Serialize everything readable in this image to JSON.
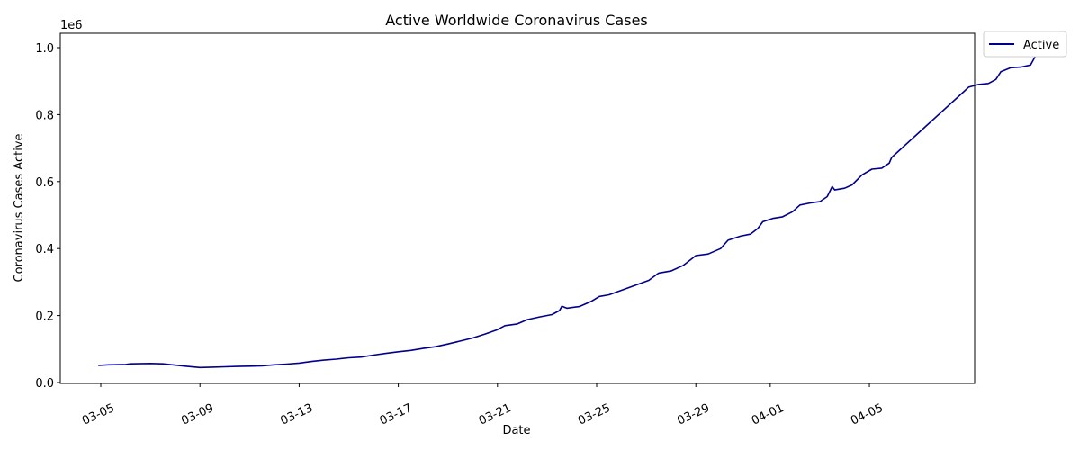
{
  "chart_data": {
    "type": "line",
    "title": "Active Worldwide Coronavirus Cases",
    "xlabel": "Date",
    "ylabel": "Coronavirus Cases Active",
    "y_offset_label": "1e6",
    "ylim": [
      0,
      1.0
    ],
    "y_ticks": [
      "0.0",
      "0.2",
      "0.4",
      "0.6",
      "0.8",
      "1.0"
    ],
    "x_ticks": [
      {
        "label": "03-05",
        "day": 0
      },
      {
        "label": "03-09",
        "day": 4
      },
      {
        "label": "03-13",
        "day": 8
      },
      {
        "label": "03-17",
        "day": 12
      },
      {
        "label": "03-21",
        "day": 16
      },
      {
        "label": "03-25",
        "day": 20
      },
      {
        "label": "03-29",
        "day": 24
      },
      {
        "label": "04-01",
        "day": 27
      },
      {
        "label": "04-05",
        "day": 31
      }
    ],
    "xlim_days": [
      -1.7,
      35.4
    ],
    "legend": {
      "position": "outside-top-right",
      "entries": [
        "Active"
      ]
    },
    "series": [
      {
        "name": "Active",
        "color": "#00008b",
        "points": [
          [
            -0.1,
            0.051
          ],
          [
            0.3,
            0.053
          ],
          [
            1.0,
            0.054
          ],
          [
            1.2,
            0.056
          ],
          [
            2.0,
            0.057
          ],
          [
            2.5,
            0.056
          ],
          [
            3.5,
            0.048
          ],
          [
            4.0,
            0.045
          ],
          [
            4.5,
            0.046
          ],
          [
            5.0,
            0.047
          ],
          [
            5.5,
            0.048
          ],
          [
            6.0,
            0.049
          ],
          [
            6.5,
            0.05
          ],
          [
            7.0,
            0.053
          ],
          [
            7.5,
            0.055
          ],
          [
            8.0,
            0.058
          ],
          [
            8.5,
            0.063
          ],
          [
            9.0,
            0.067
          ],
          [
            9.5,
            0.07
          ],
          [
            10.0,
            0.074
          ],
          [
            10.5,
            0.076
          ],
          [
            11.0,
            0.082
          ],
          [
            11.5,
            0.087
          ],
          [
            12.0,
            0.092
          ],
          [
            12.5,
            0.096
          ],
          [
            13.0,
            0.102
          ],
          [
            13.5,
            0.107
          ],
          [
            14.0,
            0.115
          ],
          [
            14.5,
            0.124
          ],
          [
            15.0,
            0.133
          ],
          [
            15.5,
            0.145
          ],
          [
            16.0,
            0.158
          ],
          [
            16.3,
            0.17
          ],
          [
            16.8,
            0.175
          ],
          [
            17.2,
            0.188
          ],
          [
            17.7,
            0.196
          ],
          [
            18.2,
            0.203
          ],
          [
            18.5,
            0.215
          ],
          [
            18.6,
            0.228
          ],
          [
            18.8,
            0.222
          ],
          [
            19.3,
            0.227
          ],
          [
            19.8,
            0.243
          ],
          [
            20.1,
            0.257
          ],
          [
            20.5,
            0.262
          ],
          [
            22.1,
            0.305
          ],
          [
            22.5,
            0.327
          ],
          [
            23.0,
            0.333
          ],
          [
            23.5,
            0.35
          ],
          [
            24.0,
            0.379
          ],
          [
            24.5,
            0.384
          ],
          [
            25.0,
            0.4
          ],
          [
            25.3,
            0.425
          ],
          [
            25.8,
            0.437
          ],
          [
            26.2,
            0.443
          ],
          [
            26.5,
            0.46
          ],
          [
            26.7,
            0.48
          ],
          [
            27.1,
            0.49
          ],
          [
            27.5,
            0.495
          ],
          [
            27.9,
            0.51
          ],
          [
            28.2,
            0.53
          ],
          [
            28.6,
            0.536
          ],
          [
            29.0,
            0.54
          ],
          [
            29.3,
            0.555
          ],
          [
            29.5,
            0.585
          ],
          [
            29.6,
            0.575
          ],
          [
            30.0,
            0.58
          ],
          [
            30.3,
            0.59
          ],
          [
            30.7,
            0.62
          ],
          [
            31.1,
            0.637
          ],
          [
            31.5,
            0.64
          ],
          [
            31.8,
            0.655
          ],
          [
            31.9,
            0.672
          ],
          [
            34.8,
            0.868
          ],
          [
            35.0,
            0.882
          ],
          [
            35.4,
            0.89
          ],
          [
            35.8,
            0.893
          ],
          [
            36.1,
            0.905
          ],
          [
            36.3,
            0.928
          ],
          [
            36.7,
            0.94
          ],
          [
            37.1,
            0.942
          ],
          [
            37.5,
            0.948
          ],
          [
            37.7,
            0.975
          ],
          [
            38.0,
            0.99
          ],
          [
            38.3,
            0.993
          ],
          [
            38.5,
            0.985
          ],
          [
            38.9,
            0.99
          ]
        ]
      }
    ]
  }
}
